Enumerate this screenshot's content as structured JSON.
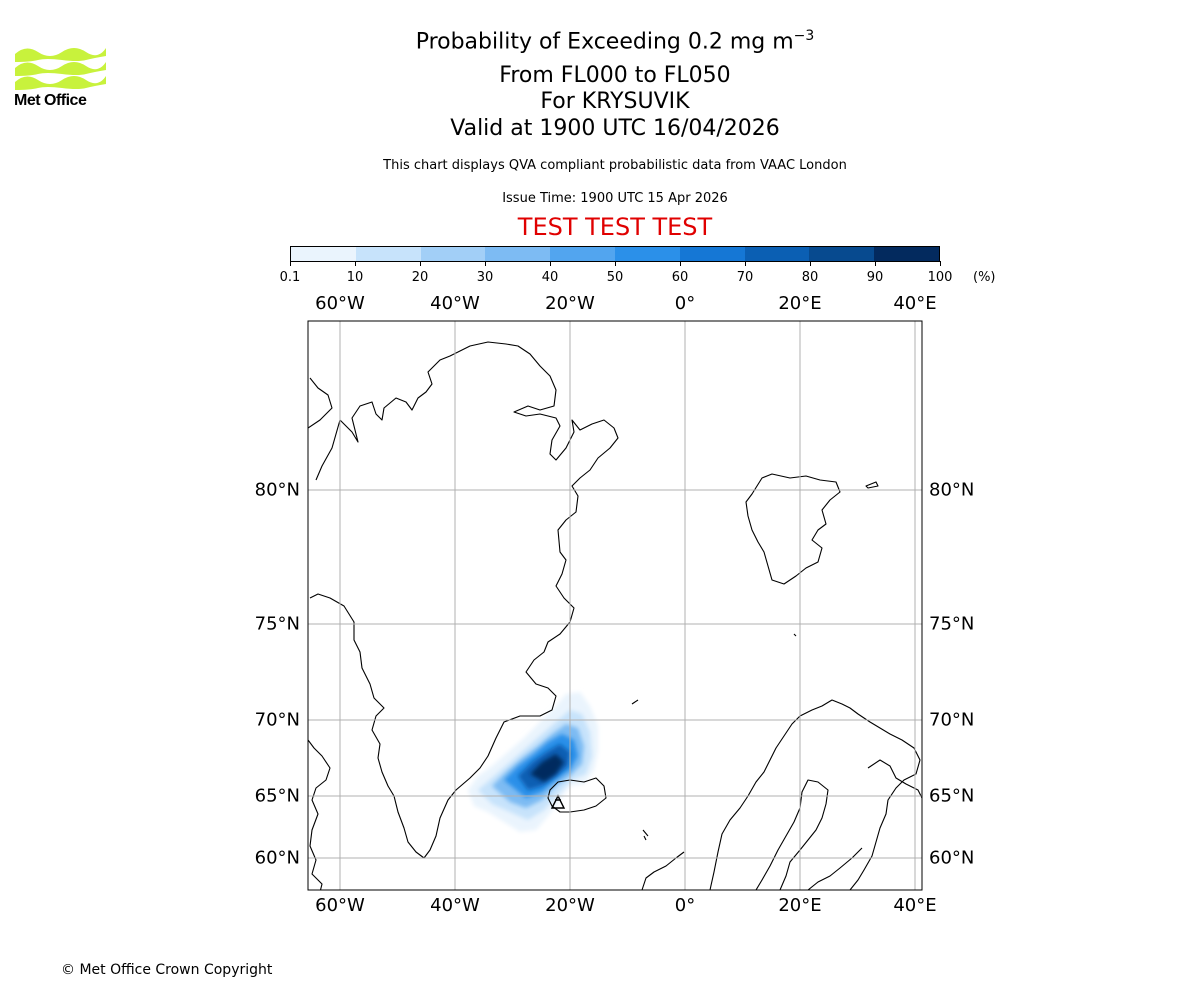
{
  "logo": {
    "name": "Met Office",
    "color": "#c8f23c"
  },
  "header": {
    "title_prefix": "Probability of Exceeding 0.2 mg m",
    "title_exponent": "−3",
    "level_range": "From FL000 to FL050",
    "volcano": "For KRYSUVIK",
    "valid_time": "Valid at 1900 UTC 16/04/2026",
    "description": "This chart displays QVA compliant probabilistic data from VAAC London",
    "issue_time": "Issue Time: 1900 UTC 15 Apr 2026",
    "test_banner": "TEST TEST TEST",
    "test_color": "#e00000"
  },
  "colorbar": {
    "ticks": [
      "0.1",
      "10",
      "20",
      "30",
      "40",
      "50",
      "60",
      "70",
      "80",
      "90",
      "100"
    ],
    "unit": "(%)",
    "colors": [
      "#eaf4fd",
      "#c7e3fb",
      "#a2cff7",
      "#7dbbf3",
      "#52a5ef",
      "#2b90e9",
      "#1577d5",
      "#0b5fb3",
      "#074a8f",
      "#032a5e"
    ]
  },
  "map": {
    "lon_labels": [
      "60°W",
      "40°W",
      "20°W",
      "0°",
      "20°E",
      "40°E"
    ],
    "lat_labels": [
      "80°N",
      "75°N",
      "70°N",
      "65°N",
      "60°N"
    ],
    "plume_levels_percent": [
      5,
      15,
      30,
      50,
      70,
      90
    ]
  },
  "footer": {
    "copyright": "© Met Office Crown Copyright"
  }
}
